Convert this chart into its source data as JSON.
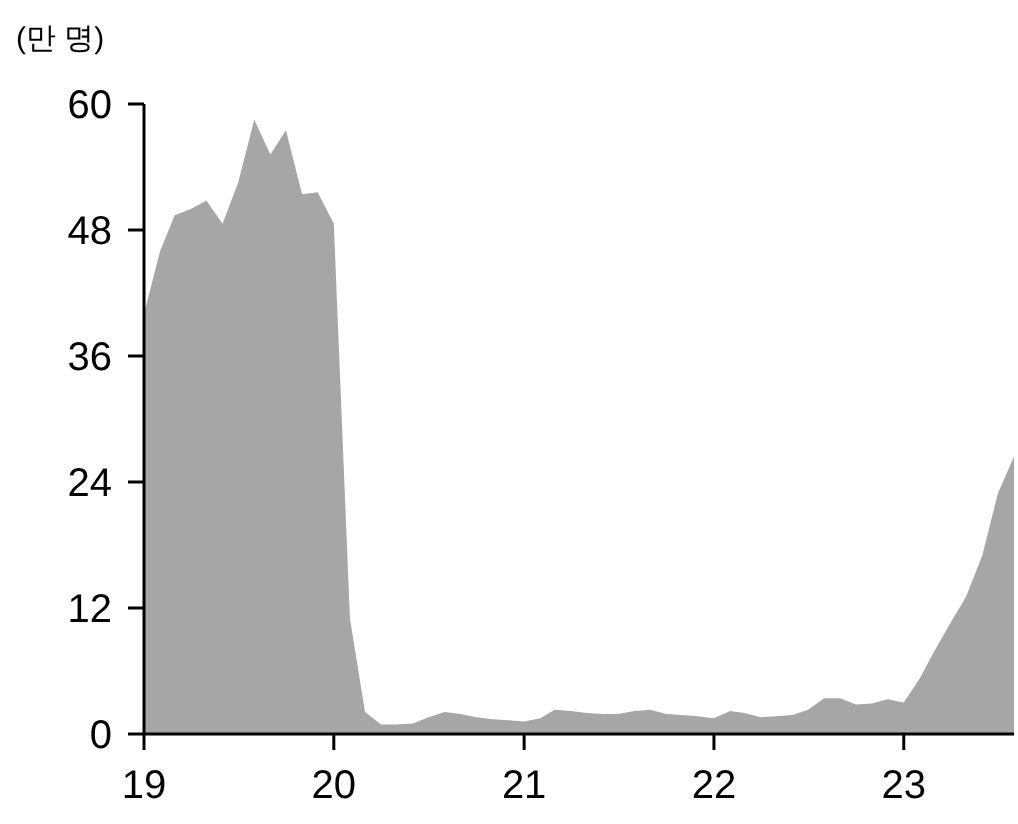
{
  "chart_data": {
    "type": "area",
    "ylabel": "(만 명)",
    "x": [
      "2019-01",
      "2019-02",
      "2019-03",
      "2019-04",
      "2019-05",
      "2019-06",
      "2019-07",
      "2019-08",
      "2019-09",
      "2019-10",
      "2019-11",
      "2019-12",
      "2020-01",
      "2020-02",
      "2020-03",
      "2020-04",
      "2020-05",
      "2020-06",
      "2020-07",
      "2020-08",
      "2020-09",
      "2020-10",
      "2020-11",
      "2020-12",
      "2021-01",
      "2021-02",
      "2021-03",
      "2021-04",
      "2021-05",
      "2021-06",
      "2021-07",
      "2021-08",
      "2021-09",
      "2021-10",
      "2021-11",
      "2021-12",
      "2022-01",
      "2022-02",
      "2022-03",
      "2022-04",
      "2022-05",
      "2022-06",
      "2022-07",
      "2022-08",
      "2022-09",
      "2022-10",
      "2022-11",
      "2022-12",
      "2023-01",
      "2023-02",
      "2023-03",
      "2023-04",
      "2023-05",
      "2023-06",
      "2023-07",
      "2023-08"
    ],
    "series": [
      {
        "color": "#a6a6a6",
        "values": [
          40,
          46,
          49.4,
          50,
          50.8,
          48.6,
          52.5,
          58.5,
          55.2,
          57.5,
          51.4,
          51.6,
          48.6,
          11,
          2.1,
          0.9,
          0.9,
          1,
          1.6,
          2.1,
          1.9,
          1.6,
          1.4,
          1.3,
          1.2,
          1.5,
          2.3,
          2.2,
          2,
          1.9,
          1.9,
          2.2,
          2.3,
          1.9,
          1.8,
          1.7,
          1.5,
          2.2,
          2,
          1.6,
          1.7,
          1.8,
          2.3,
          3.4,
          3.4,
          2.8,
          2.9,
          3.3,
          3,
          5.3,
          7.9,
          10.6,
          13.1,
          17,
          22.9,
          26.4
        ]
      }
    ],
    "xlim": [
      "2019-01",
      "2023-08"
    ],
    "xticks": [
      {
        "value": "2019-01",
        "label": "19"
      },
      {
        "value": "2020-01",
        "label": "20"
      },
      {
        "value": "2021-01",
        "label": "21"
      },
      {
        "value": "2022-01",
        "label": "22"
      },
      {
        "value": "2023-01",
        "label": "23"
      }
    ],
    "ylim": [
      0,
      60
    ],
    "yticks": [
      0,
      12,
      24,
      36,
      48,
      60
    ],
    "grid": false
  }
}
